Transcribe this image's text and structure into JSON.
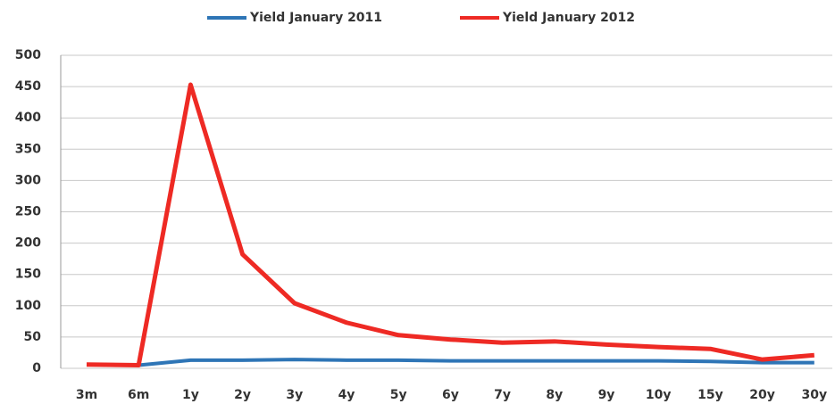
{
  "chart_data": {
    "type": "line",
    "categories": [
      "3m",
      "6m",
      "1y",
      "2y",
      "3y",
      "4y",
      "5y",
      "6y",
      "7y",
      "8y",
      "9y",
      "10y",
      "15y",
      "20y",
      "30y"
    ],
    "series": [
      {
        "name": "Yield January 2011",
        "color": "#2e75b6",
        "values": [
          6,
          5,
          13,
          13,
          14,
          13,
          13,
          12,
          12,
          12,
          12,
          12,
          11,
          9,
          9
        ]
      },
      {
        "name": "Yield January 2012",
        "color": "#ee2a24",
        "values": [
          6,
          5,
          453,
          182,
          104,
          73,
          53,
          46,
          41,
          43,
          38,
          34,
          31,
          14,
          21
        ]
      }
    ],
    "ylim": [
      0,
      500
    ],
    "yticks": [
      0,
      50,
      100,
      150,
      200,
      250,
      300,
      350,
      400,
      450,
      500
    ],
    "grid": true,
    "legend": "top"
  }
}
